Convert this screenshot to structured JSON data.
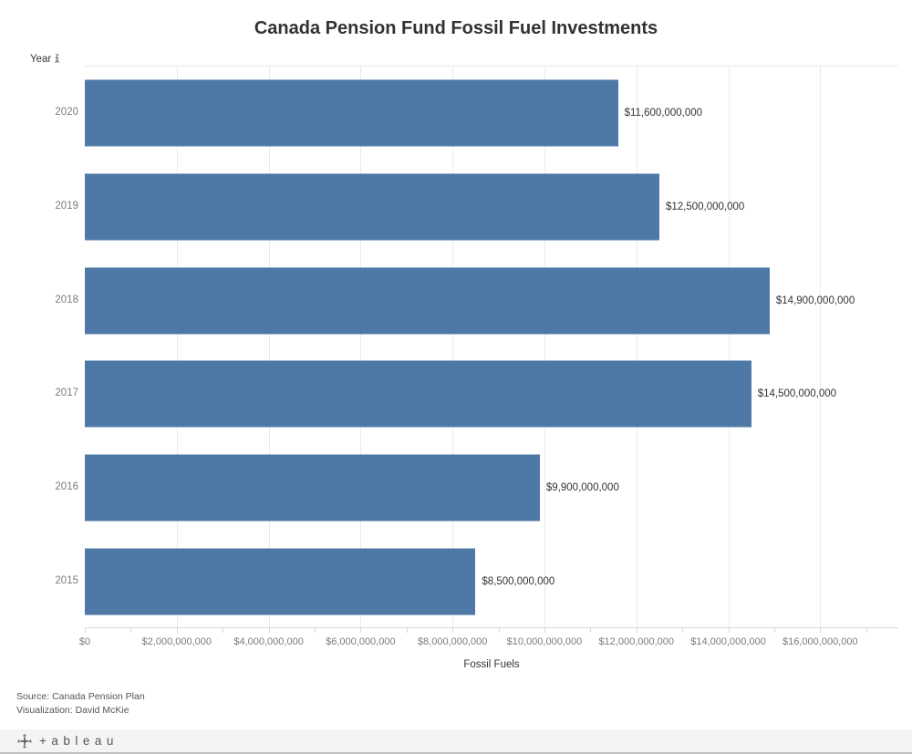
{
  "title": "Canada Pension Fund Fossil Fuel Investments",
  "row_header": {
    "label": "Year",
    "sort_icon_top": "Z",
    "sort_icon_bottom": "A"
  },
  "chart_data": {
    "type": "bar",
    "orientation": "horizontal",
    "title": "Canada Pension Fund Fossil Fuel Investments",
    "xlabel": "Fossil Fuels",
    "ylabel": "Year",
    "categories": [
      "2020",
      "2019",
      "2018",
      "2017",
      "2016",
      "2015"
    ],
    "values": [
      11600000000,
      12500000000,
      14900000000,
      14500000000,
      9900000000,
      8500000000
    ],
    "bar_labels": [
      "$11,600,000,000",
      "$12,500,000,000",
      "$14,900,000,000",
      "$14,500,000,000",
      "$9,900,000,000",
      "$8,500,000,000"
    ],
    "xlim": [
      0,
      17700000000
    ],
    "x_ticks": [
      2000000000,
      4000000000,
      6000000000,
      8000000000,
      10000000000,
      12000000000,
      14000000000,
      16000000000
    ],
    "x_tick_labels": [
      "$0",
      "$2,000,000,000",
      "$4,000,000,000",
      "$6,000,000,000",
      "$8,000,000,000",
      "$10,000,000,000",
      "$12,000,000,000",
      "$14,000,000,000",
      "$16,000,000,000"
    ],
    "x_tick_label_values": [
      0,
      2000000000,
      4000000000,
      6000000000,
      8000000000,
      10000000000,
      12000000000,
      14000000000,
      16000000000
    ],
    "minor_tick_step": 1000000000,
    "minor_tick_max": 17000000000,
    "grid": "vertical",
    "legend": "none",
    "bar_color": "#4e79a7"
  },
  "footer": {
    "source_line1": "Source: Canada Pension Plan",
    "source_line2": "Visualization: David McKie",
    "logo_icon": "tableau-sparkle",
    "logo_text": "+ableau"
  }
}
